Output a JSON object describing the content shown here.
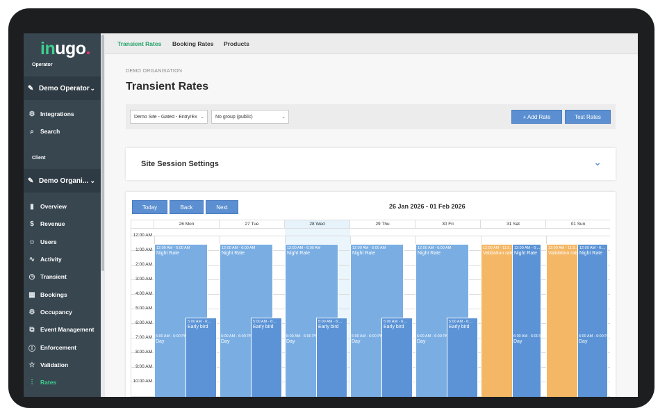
{
  "brand": {
    "logo_in": "in",
    "logo_ugo": "ugo",
    "logo_dot": "."
  },
  "sidebar": {
    "operator_label": "Operator",
    "operator_name": "Demo Operator",
    "operator_items": [
      {
        "label": "Integrations",
        "icon": "gear-icon"
      },
      {
        "label": "Search",
        "icon": "search-icon"
      }
    ],
    "client_label": "Client",
    "client_name": "Demo Organi...",
    "client_items": [
      {
        "label": "Overview",
        "icon": "bar-chart-icon"
      },
      {
        "label": "Revenue",
        "icon": "dollar-icon"
      },
      {
        "label": "Users",
        "icon": "users-icon"
      },
      {
        "label": "Activity",
        "icon": "activity-icon"
      },
      {
        "label": "Transient",
        "icon": "clock-icon"
      },
      {
        "label": "Bookings",
        "icon": "calendar-icon"
      },
      {
        "label": "Occupancy",
        "icon": "gear-icon"
      },
      {
        "label": "Event Management",
        "icon": "event-icon"
      },
      {
        "label": "Enforcement",
        "icon": "alert-icon"
      },
      {
        "label": "Validation",
        "icon": "star-icon"
      },
      {
        "label": "Rates",
        "icon": "sliders-icon",
        "active": true
      }
    ]
  },
  "tabs": [
    "Transient Rates",
    "Booking Rates",
    "Products"
  ],
  "active_tab": "Transient Rates",
  "breadcrumb": "DEMO ORGANISATION",
  "title": "Transient Rates",
  "filters": {
    "site": "Demo Site - Gated - Entry/Ex",
    "group": "No group (public)",
    "add_rate": "+ Add Rate",
    "test_rates": "Test Rates"
  },
  "session_settings": {
    "title": "Site Session Settings"
  },
  "calendar": {
    "today_btn": "Today",
    "back_btn": "Back",
    "next_btn": "Next",
    "range": "26 Jan 2026 - 01 Feb 2026",
    "days": [
      "26 Mon",
      "27 Tue",
      "28 Wed",
      "29 Thu",
      "30 Fri",
      "31 Sat",
      "01 Sun"
    ],
    "today_index": 2,
    "times": [
      "12:00 AM",
      "1:00 AM",
      "2:00 AM",
      "3:00 AM",
      "4:00 AM",
      "5:00 AM",
      "6:00 AM",
      "7:00 AM",
      "8:00 AM",
      "9:00 AM",
      "10:00 AM"
    ],
    "weekday_events": {
      "night": {
        "time": "12:00 AM - 6:00 AM",
        "name": "Night Rate"
      },
      "early": {
        "time": "5:00 AM - 6:...",
        "name": "Early bird"
      },
      "day": {
        "time": "6:00 AM - 6:00 PM",
        "name": "Day"
      }
    },
    "weekend_events": {
      "validation": {
        "time": "12:00 AM - 11:5...",
        "name": "Validation rate"
      },
      "night": {
        "time": "12:00 AM - 6:...",
        "name": "Night Rate"
      },
      "day": {
        "time": "6:00 AM - 6:00 PM",
        "name": "Day"
      }
    }
  },
  "colors": {
    "accent": "#3ecf8e",
    "primary": "#5b8fd1",
    "validation": "#f4b765"
  }
}
